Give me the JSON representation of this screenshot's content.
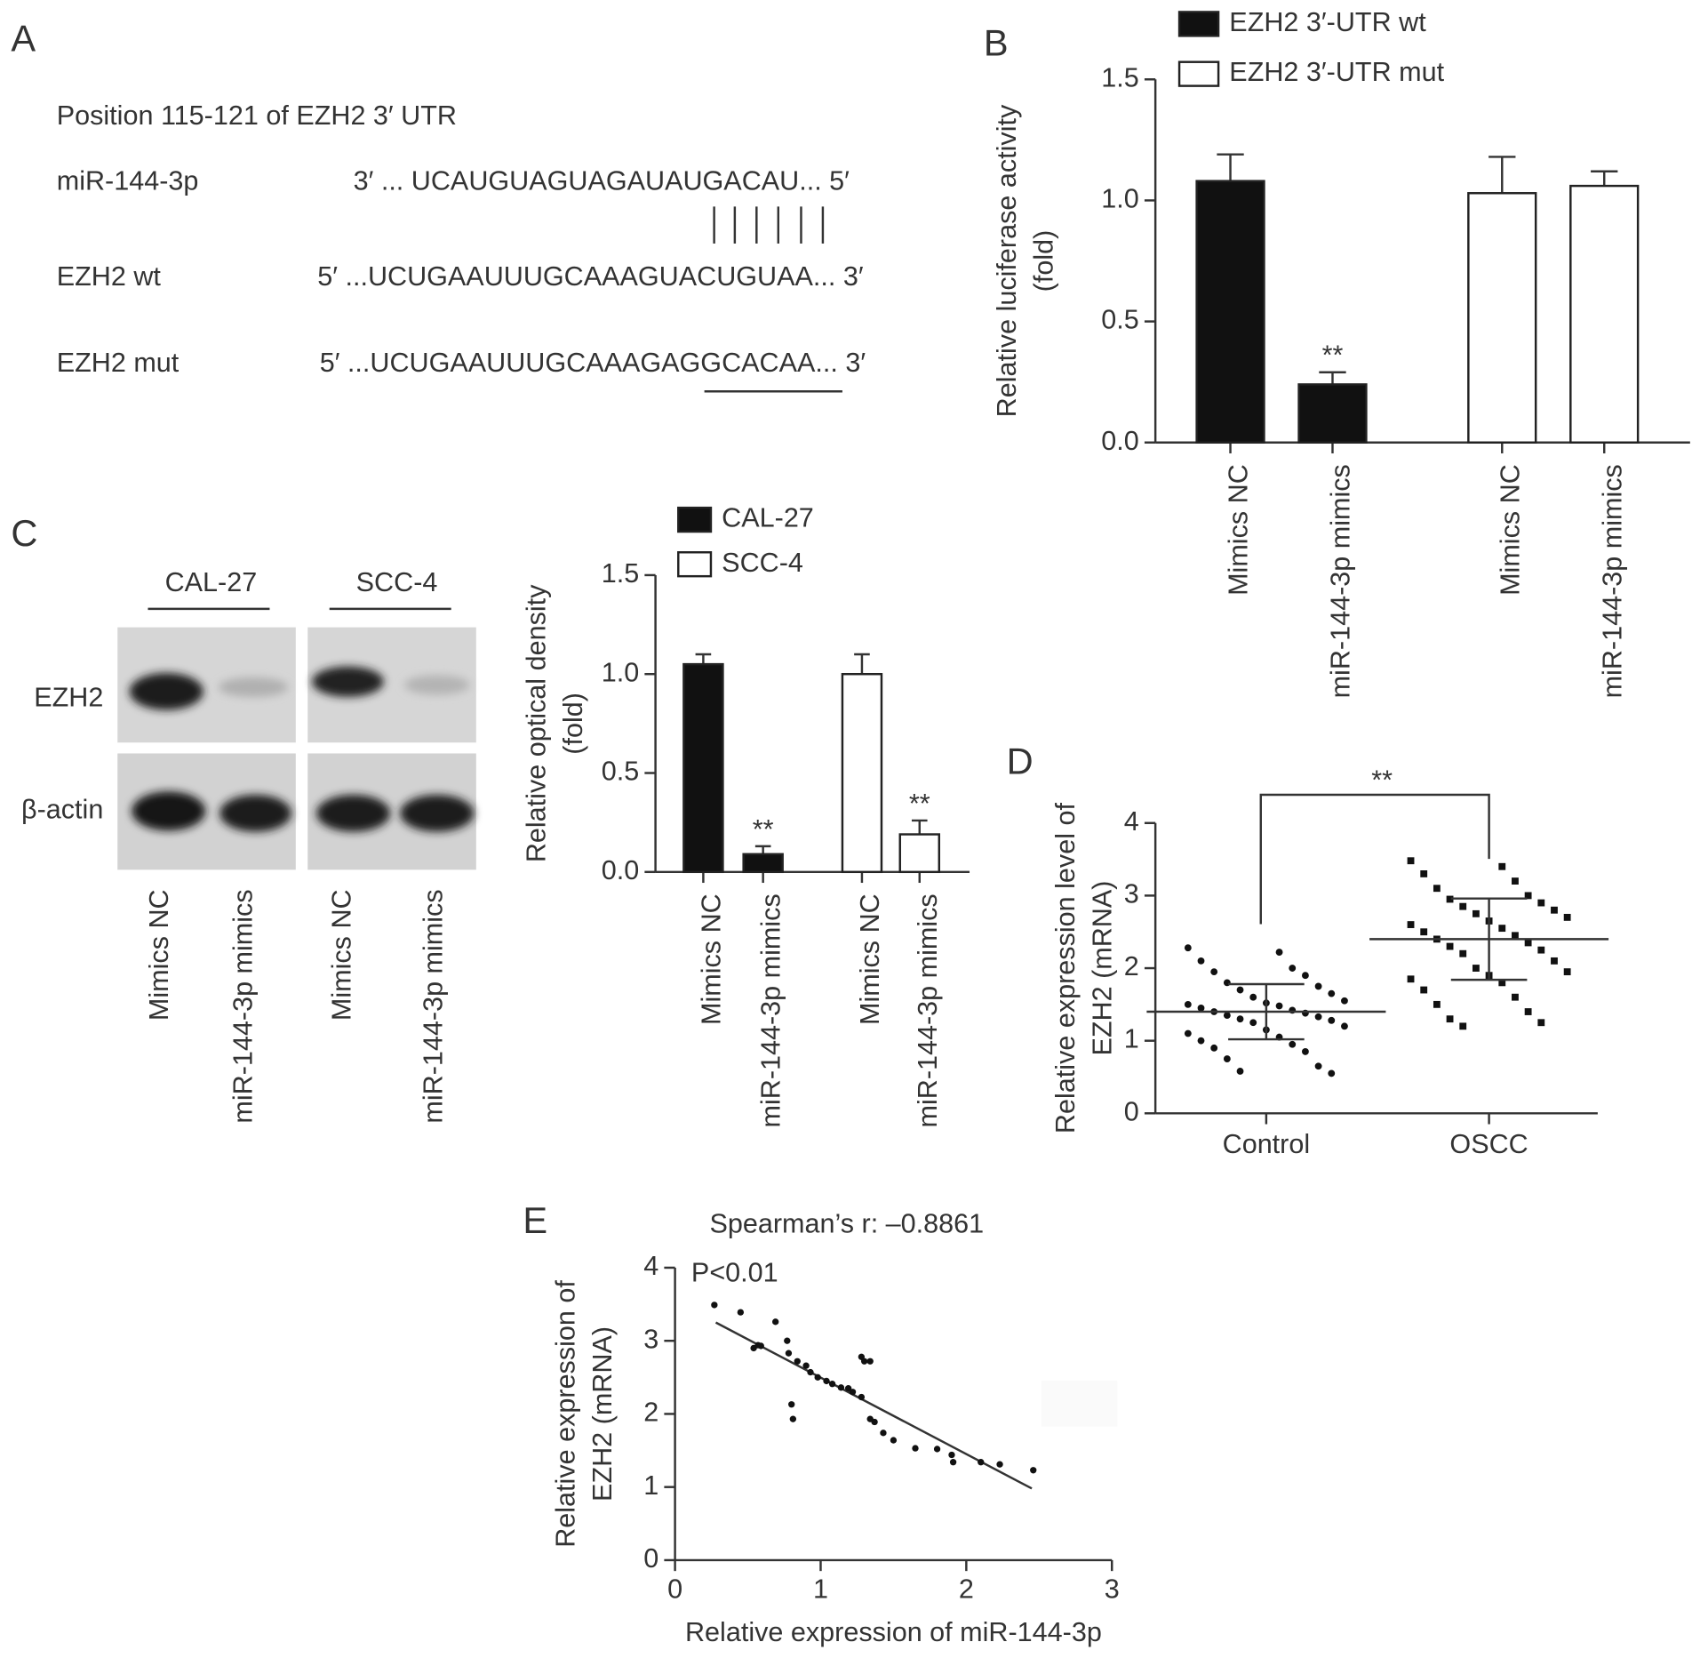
{
  "panel_labels": [
    "A",
    "B",
    "C",
    "D",
    "E"
  ],
  "sequence_panel": {
    "title": "Position 115-121 of EZH2 3′ UTR",
    "rows": [
      {
        "label": "miR-144-3p",
        "sequence": "3′ ... UCAUGUAGUAGAUAUGACAU... 5′"
      },
      {
        "label": "EZH2 wt",
        "sequence": "5′ ...UCUGAAUUUGCAAAGUACUGUAA... 3′"
      },
      {
        "label": "EZH2 mut",
        "sequence": "5′ ...UCUGAAUUUGCAAAGAGGCACAA... 3′"
      }
    ]
  },
  "western_blot": {
    "groups": [
      "CAL-27",
      "SCC-4"
    ],
    "proteins": [
      "EZH2",
      "β-actin"
    ],
    "lanes": [
      "Mimics NC",
      "miR-144-3p mimics",
      "Mimics NC",
      "miR-144-3p mimics"
    ]
  },
  "chart_data": [
    {
      "type": "bar",
      "ylabel": [
        "Relative luciferase activity",
        "(fold)"
      ],
      "categories": [
        "Mimics NC",
        "miR-144-3p mimics",
        "Mimics NC",
        "miR-144-3p mimics"
      ],
      "series": [
        {
          "name": "EZH2 3′-UTR wt",
          "color": "#111111",
          "values": [
            1.08,
            0.24,
            null,
            null
          ],
          "errors": [
            0.11,
            0.05,
            null,
            null
          ]
        },
        {
          "name": "EZH2 3′-UTR mut",
          "color": "#ffffff",
          "values": [
            null,
            null,
            1.03,
            1.06
          ],
          "errors": [
            null,
            null,
            0.15,
            0.06
          ]
        }
      ],
      "significance": [
        null,
        "**",
        null,
        null
      ],
      "ylim": [
        0,
        1.5
      ],
      "yticks": [
        {
          "value": 0,
          "label": "0.0"
        },
        0.5,
        {
          "value": 1,
          "label": "1.0"
        },
        1.5
      ]
    },
    {
      "type": "bar",
      "ylabel": [
        "Relative optical density",
        "(fold)"
      ],
      "categories": [
        "Mimics NC",
        "miR-144-3p mimics",
        "Mimics NC",
        "miR-144-3p mimics"
      ],
      "series": [
        {
          "name": "CAL-27",
          "color": "#111111",
          "values": [
            1.05,
            0.09,
            null,
            null
          ],
          "errors": [
            0.05,
            0.04,
            null,
            null
          ]
        },
        {
          "name": "SCC-4",
          "color": "#ffffff",
          "values": [
            null,
            null,
            1.0,
            0.19
          ],
          "errors": [
            null,
            null,
            0.1,
            0.07
          ]
        }
      ],
      "significance": [
        null,
        "**",
        null,
        "**"
      ],
      "ylim": [
        0,
        1.5
      ],
      "yticks": [
        {
          "value": 0,
          "label": "0.0"
        },
        0.5,
        {
          "value": 1,
          "label": "1.0"
        },
        1.5
      ]
    },
    {
      "type": "dot",
      "ylabel": [
        "Relative expression level of",
        "EZH2 (mRNA)"
      ],
      "categories": [
        "Control",
        "OSCC"
      ],
      "values": [
        [
          2.28,
          2.22,
          2.1,
          2.0,
          1.95,
          1.9,
          1.8,
          1.75,
          1.7,
          1.65,
          1.6,
          1.55,
          1.52,
          1.5,
          1.48,
          1.45,
          1.42,
          1.4,
          1.38,
          1.35,
          1.33,
          1.3,
          1.28,
          1.25,
          1.2,
          1.15,
          1.1,
          1.05,
          1.0,
          0.95,
          0.9,
          0.85,
          0.75,
          0.65,
          0.58,
          0.55
        ],
        [
          3.48,
          3.4,
          3.3,
          3.2,
          3.1,
          3.0,
          2.95,
          2.9,
          2.85,
          2.8,
          2.75,
          2.7,
          2.65,
          2.6,
          2.55,
          2.5,
          2.45,
          2.4,
          2.35,
          2.3,
          2.25,
          2.2,
          2.1,
          2.0,
          1.95,
          1.9,
          1.85,
          1.8,
          1.7,
          1.6,
          1.5,
          1.4,
          1.3,
          1.25,
          1.2
        ]
      ],
      "means": [
        1.4,
        2.4
      ],
      "sd": [
        0.38,
        0.56
      ],
      "significance": "**",
      "ylim": [
        0,
        4
      ],
      "yticks": [
        0,
        1,
        2,
        3,
        4
      ]
    },
    {
      "type": "scatter",
      "title": "Spearman’s r: –0.8861",
      "annotation": "P<0.01",
      "xlabel": "Relative expression of miR-144-3p",
      "ylabel": [
        "Relative expression of",
        "EZH2 (mRNA)"
      ],
      "x": [
        0.27,
        0.45,
        0.69,
        0.54,
        0.57,
        0.59,
        0.77,
        0.78,
        0.84,
        0.9,
        0.93,
        0.98,
        1.04,
        1.08,
        1.14,
        1.19,
        1.22,
        1.28,
        1.3,
        1.34,
        1.28,
        0.8,
        0.81,
        1.34,
        1.37,
        1.43,
        1.5,
        1.65,
        1.8,
        1.9,
        1.91,
        2.1,
        2.23,
        2.46
      ],
      "y": [
        3.49,
        3.39,
        3.26,
        2.9,
        2.94,
        2.93,
        3.0,
        2.83,
        2.72,
        2.66,
        2.57,
        2.5,
        2.45,
        2.41,
        2.36,
        2.35,
        2.3,
        2.78,
        2.72,
        2.72,
        2.23,
        2.13,
        1.93,
        1.93,
        1.89,
        1.74,
        1.64,
        1.53,
        1.52,
        1.44,
        1.34,
        1.34,
        1.31,
        1.23
      ],
      "fit": {
        "x": [
          0.28,
          2.45
        ],
        "y": [
          3.25,
          0.98
        ]
      },
      "xlim": [
        0,
        3
      ],
      "xticks": [
        0,
        1,
        2,
        3
      ],
      "ylim": [
        0,
        4
      ],
      "yticks": [
        0,
        1,
        2,
        3,
        4
      ]
    }
  ]
}
